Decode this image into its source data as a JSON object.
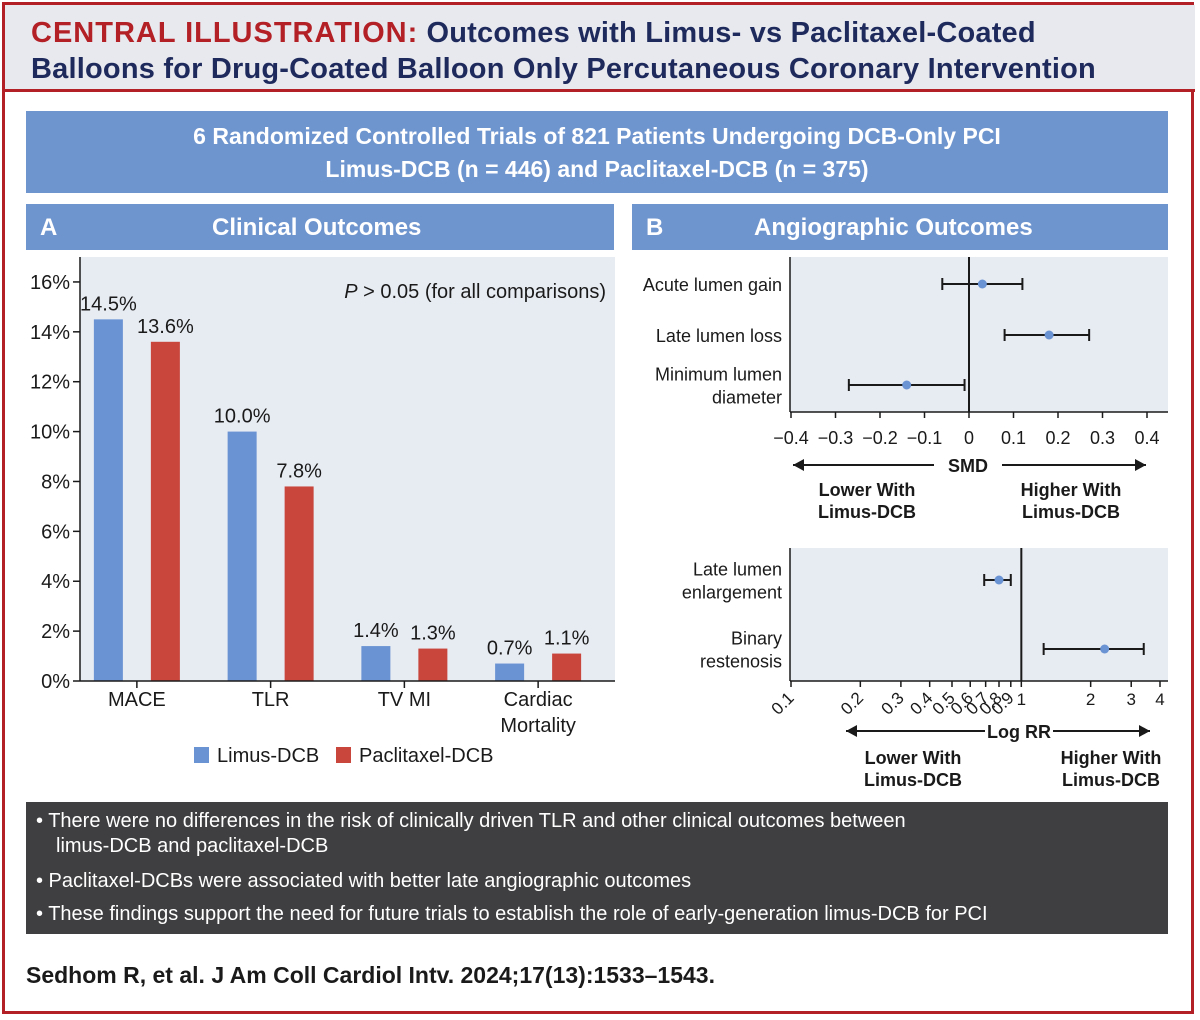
{
  "header": {
    "label": "CENTRAL ILLUSTRATION:",
    "title_line1": "Outcomes with Limus- vs Paclitaxel-Coated",
    "title_line2": "Balloons for Drug-Coated Balloon Only Percutaneous Coronary Intervention"
  },
  "banner": {
    "line1": "6 Randomized Controlled Trials of 821 Patients Undergoing DCB-Only PCI",
    "line2": "Limus-DCB (n = 446) and Paclitaxel-DCB (n = 375)"
  },
  "panel_a": {
    "letter": "A",
    "title": "Clinical Outcomes"
  },
  "panel_b": {
    "letter": "B",
    "title": "Angiographic Outcomes"
  },
  "colors": {
    "limus": "#6a93d3",
    "paclitaxel": "#c9463d",
    "panel": "#e7ebf2",
    "header_bar": "#6f95cf",
    "accent_red": "#b32025"
  },
  "chart_data": [
    {
      "type": "bar",
      "categories": [
        "MACE",
        "TLR",
        "TV MI",
        "Cardiac Mortality"
      ],
      "category_lines": [
        [
          "MACE"
        ],
        [
          "TLR"
        ],
        [
          "TV MI"
        ],
        [
          "Cardiac",
          "Mortality"
        ]
      ],
      "series": [
        {
          "name": "Limus-DCB",
          "values": [
            14.5,
            10.0,
            1.4,
            0.7
          ],
          "labels": [
            "14.5%",
            "10.0%",
            "1.4%",
            "0.7%"
          ],
          "color": "#6a93d3"
        },
        {
          "name": "Paclitaxel-DCB",
          "values": [
            13.6,
            7.8,
            1.3,
            1.1
          ],
          "labels": [
            "13.6%",
            "7.8%",
            "1.3%",
            "1.1%"
          ],
          "color": "#c9463d"
        }
      ],
      "ylim": [
        0,
        17
      ],
      "yticks": [
        0,
        2,
        4,
        6,
        8,
        10,
        12,
        14,
        16
      ],
      "ytick_labels": [
        "0%",
        "2%",
        "4%",
        "6%",
        "8%",
        "10%",
        "12%",
        "14%",
        "16%"
      ],
      "annotation_p": "P",
      "annotation_rest": " > 0.05 (for all comparisons)",
      "legend_position": "bottom"
    },
    {
      "type": "scatter",
      "subtype": "forest",
      "x_scale": "linear",
      "xlim": [
        -0.4,
        0.4
      ],
      "xticks": [
        -0.4,
        -0.3,
        -0.2,
        -0.1,
        0,
        0.1,
        0.2,
        0.3,
        0.4
      ],
      "xtick_labels": [
        "−0.4",
        "−0.3",
        "−0.2",
        "−0.1",
        "0",
        "0.1",
        "0.2",
        "0.3",
        "0.4"
      ],
      "xlabel": "SMD",
      "left_note": [
        "Lower With",
        "Limus-DCB"
      ],
      "right_note": [
        "Higher With",
        "Limus-DCB"
      ],
      "rows": [
        {
          "label_lines": [
            "Acute lumen gain"
          ],
          "estimate": 0.03,
          "lower": -0.06,
          "upper": 0.12
        },
        {
          "label_lines": [
            "Late lumen loss"
          ],
          "estimate": 0.18,
          "lower": 0.08,
          "upper": 0.27
        },
        {
          "label_lines": [
            "Minimum lumen",
            "diameter"
          ],
          "estimate": -0.14,
          "lower": -0.27,
          "upper": -0.01
        }
      ]
    },
    {
      "type": "scatter",
      "subtype": "forest",
      "x_scale": "log",
      "xlim": [
        0.1,
        4
      ],
      "xticks": [
        0.1,
        0.2,
        0.3,
        0.4,
        0.5,
        0.6,
        0.7,
        0.8,
        0.9,
        1,
        2,
        3,
        4
      ],
      "xtick_labels": [
        "0.1",
        "0.2",
        "0.3",
        "0.4",
        "0.5",
        "0.6",
        "0.7",
        "0.8",
        "0.9",
        "1",
        "2",
        "3",
        "4"
      ],
      "xlabel": "Log RR",
      "left_note": [
        "Lower With",
        "Limus-DCB"
      ],
      "right_note": [
        "Higher With",
        "Limus-DCB"
      ],
      "rows": [
        {
          "label_lines": [
            "Late lumen",
            "enlargement"
          ],
          "estimate": 0.8,
          "lower": 0.69,
          "upper": 0.9
        },
        {
          "label_lines": [
            "Binary",
            "restenosis"
          ],
          "estimate": 2.3,
          "lower": 1.25,
          "upper": 3.4
        }
      ]
    }
  ],
  "bullets": [
    "• There were no differences in the risk of clinically driven TLR and other clinical outcomes between",
    "limus-DCB and paclitaxel-DCB",
    "• Paclitaxel-DCBs were associated with better late angiographic outcomes",
    "• These findings support the need for future trials to establish the role of early-generation limus-DCB for PCI"
  ],
  "citation": "Sedhom R, et al. J Am Coll Cardiol Intv. 2024;17(13):1533–1543."
}
